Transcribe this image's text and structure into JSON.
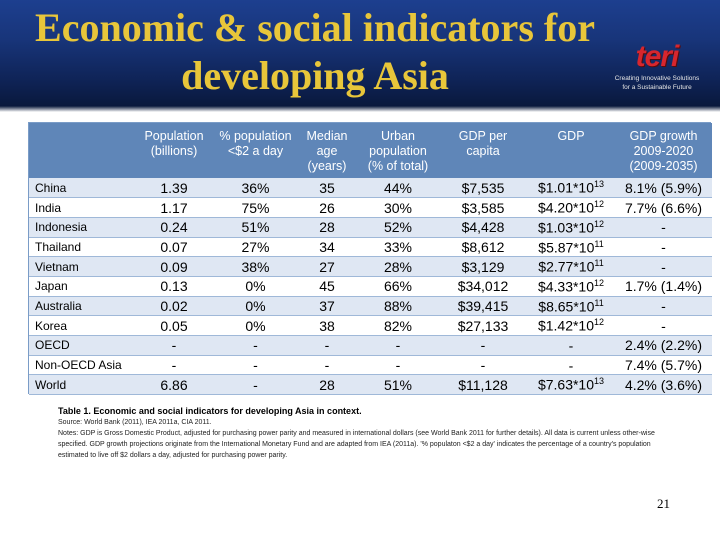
{
  "slide": {
    "title_line1": "Economic & social indicators for",
    "title_line2": "developing Asia",
    "page_number": "21"
  },
  "logo": {
    "name": "teri",
    "tagline1": "Creating Innovative Solutions",
    "tagline2": "for a Sustainable Future"
  },
  "colors": {
    "header_bg": "#18357a",
    "title_text": "#e8c63a",
    "table_header_bg": "#5f86b8",
    "row_stripe": "#dfe7f3",
    "logo_red": "#d7262e"
  },
  "table": {
    "headers": [
      {
        "l1": "",
        "l2": "",
        "l3": ""
      },
      {
        "l1": "Population",
        "l2": "(billions)",
        "l3": ""
      },
      {
        "l1": "% population",
        "l2": "<$2 a day",
        "l3": ""
      },
      {
        "l1": "Median",
        "l2": "age",
        "l3": "(years)"
      },
      {
        "l1": "Urban",
        "l2": "population",
        "l3": "(% of total)"
      },
      {
        "l1": "GDP per",
        "l2": "capita",
        "l3": ""
      },
      {
        "l1": "GDP",
        "l2": "",
        "l3": ""
      },
      {
        "l1": "GDP growth",
        "l2": "2009-2020",
        "l3": "(2009-2035)"
      }
    ],
    "rows": [
      {
        "country": "China",
        "population": "1.39",
        "pct_under_2": "36%",
        "median_age": "35",
        "urban": "44%",
        "gdp_per_capita": "$7,535",
        "gdp_base": "$1.01*10",
        "gdp_exp": "13",
        "gdp_growth": "8.1% (5.9%)"
      },
      {
        "country": "India",
        "population": "1.17",
        "pct_under_2": "75%",
        "median_age": "26",
        "urban": "30%",
        "gdp_per_capita": "$3,585",
        "gdp_base": "$4.20*10",
        "gdp_exp": "12",
        "gdp_growth": "7.7% (6.6%)"
      },
      {
        "country": "Indonesia",
        "population": "0.24",
        "pct_under_2": "51%",
        "median_age": "28",
        "urban": "52%",
        "gdp_per_capita": "$4,428",
        "gdp_base": "$1.03*10",
        "gdp_exp": "12",
        "gdp_growth": "-"
      },
      {
        "country": "Thailand",
        "population": "0.07",
        "pct_under_2": "27%",
        "median_age": "34",
        "urban": "33%",
        "gdp_per_capita": "$8,612",
        "gdp_base": "$5.87*10",
        "gdp_exp": "11",
        "gdp_growth": "-"
      },
      {
        "country": "Vietnam",
        "population": "0.09",
        "pct_under_2": "38%",
        "median_age": "27",
        "urban": "28%",
        "gdp_per_capita": "$3,129",
        "gdp_base": "$2.77*10",
        "gdp_exp": "11",
        "gdp_growth": "-"
      },
      {
        "country": "Japan",
        "population": "0.13",
        "pct_under_2": "0%",
        "median_age": "45",
        "urban": "66%",
        "gdp_per_capita": "$34,012",
        "gdp_base": "$4.33*10",
        "gdp_exp": "12",
        "gdp_growth": "1.7% (1.4%)"
      },
      {
        "country": "Australia",
        "population": "0.02",
        "pct_under_2": "0%",
        "median_age": "37",
        "urban": "88%",
        "gdp_per_capita": "$39,415",
        "gdp_base": "$8.65*10",
        "gdp_exp": "11",
        "gdp_growth": "-"
      },
      {
        "country": "Korea",
        "population": "0.05",
        "pct_under_2": "0%",
        "median_age": "38",
        "urban": "82%",
        "gdp_per_capita": "$27,133",
        "gdp_base": "$1.42*10",
        "gdp_exp": "12",
        "gdp_growth": "-"
      },
      {
        "country": "OECD",
        "population": "-",
        "pct_under_2": "-",
        "median_age": "-",
        "urban": "-",
        "gdp_per_capita": "-",
        "gdp_base": "-",
        "gdp_exp": "",
        "gdp_growth": "2.4% (2.2%)"
      },
      {
        "country": "Non-OECD Asia",
        "population": "-",
        "pct_under_2": "-",
        "median_age": "-",
        "urban": "-",
        "gdp_per_capita": "-",
        "gdp_base": "-",
        "gdp_exp": "",
        "gdp_growth": "7.4% (5.7%)"
      },
      {
        "country": "World",
        "population": "6.86",
        "pct_under_2": "-",
        "median_age": "28",
        "urban": "51%",
        "gdp_per_capita": "$11,128",
        "gdp_base": "$7.63*10",
        "gdp_exp": "13",
        "gdp_growth": "4.2% (3.6%)"
      }
    ]
  },
  "caption": {
    "title": "Table 1. Economic and social indicators for developing Asia in context.",
    "source": "Source: World Bank (2011), IEA 2011a, CIA 2011.",
    "notes": "Notes:  GDP is Gross Domestic Product, adjusted for purchasing power parity and measured in international dollars (see World Bank 2011 for further details). All data is current unless other-wise specified. GDP growth projections originate from the International Monetary Fund and are adapted from IEA (2011a). '% populaton <$2 a day' indicates the percentage of a country's population estimated to live off $2 dollars a day, adjusted for purchasing power parity."
  }
}
